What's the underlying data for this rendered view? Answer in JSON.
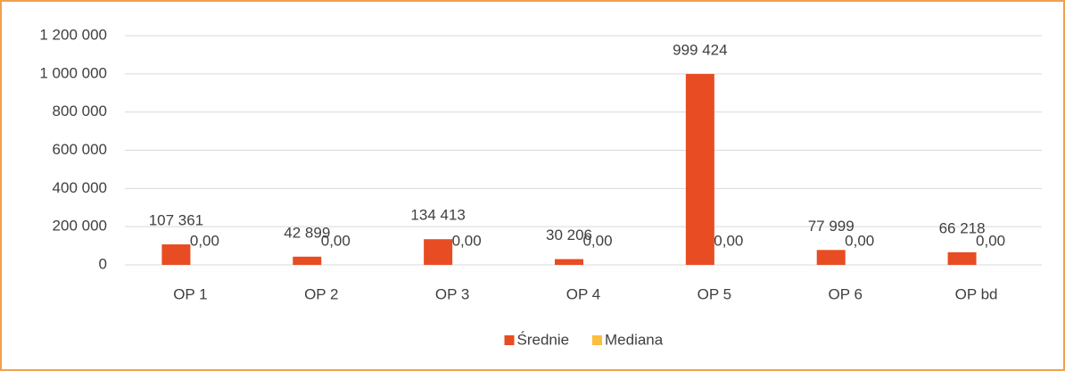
{
  "chart_data": {
    "type": "bar",
    "categories": [
      "OP 1",
      "OP 2",
      "OP 3",
      "OP 4",
      "OP 5",
      "OP 6",
      "OP bd"
    ],
    "series": [
      {
        "name": "Średnie",
        "color": "#e84c22",
        "values": [
          107361,
          42899,
          134413,
          30206,
          999424,
          77999,
          66218
        ],
        "value_labels": [
          "107 361",
          "42 899",
          "134 413",
          "30 206",
          "999 424",
          "77 999",
          "66 218"
        ]
      },
      {
        "name": "Mediana",
        "color": "#fbbf3c",
        "values": [
          0,
          0,
          0,
          0,
          0,
          0,
          0
        ],
        "value_labels": [
          "0,00",
          "0,00",
          "0,00",
          "0,00",
          "0,00",
          "0,00",
          "0,00"
        ]
      }
    ],
    "ylim": [
      0,
      1200000
    ],
    "yticks": [
      0,
      {
        "value": 200000,
        "label": "200 000"
      },
      {
        "value": 400000,
        "label": "400 000"
      },
      {
        "value": 600000,
        "label": "600 000"
      },
      {
        "value": 800000,
        "label": "800 000"
      },
      {
        "value": 1000000,
        "label": "1 000 000"
      },
      {
        "value": 1200000,
        "label": "1 200 000"
      }
    ],
    "grid": true,
    "legend": "bottom"
  }
}
